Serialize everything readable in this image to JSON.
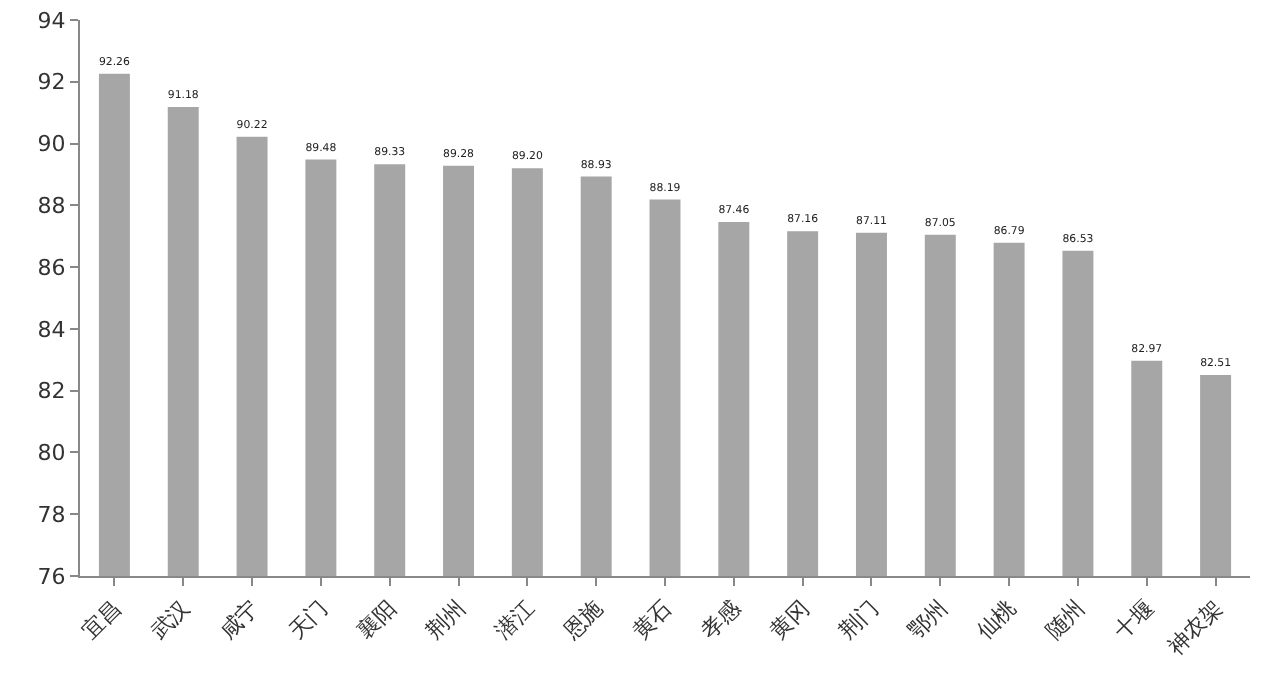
{
  "chart_data": {
    "type": "bar",
    "categories": [
      "宜昌",
      "武汉",
      "咸宁",
      "天门",
      "襄阳",
      "荆州",
      "潜江",
      "恩施",
      "黄石",
      "孝感",
      "黄冈",
      "荆门",
      "鄂州",
      "仙桃",
      "随州",
      "十堰",
      "神农架"
    ],
    "values": [
      92.26,
      91.18,
      90.22,
      89.48,
      89.33,
      89.28,
      89.2,
      88.93,
      88.19,
      87.46,
      87.16,
      87.11,
      87.05,
      86.79,
      86.53,
      82.97,
      82.51
    ],
    "value_labels": [
      "92.26",
      "91.18",
      "90.22",
      "89.48",
      "89.33",
      "89.28",
      "89.20",
      "88.93",
      "88.19",
      "87.46",
      "87.16",
      "87.11",
      "87.05",
      "86.79",
      "86.53",
      "82.97",
      "82.51"
    ],
    "color": "#a6a6a6",
    "ylim": [
      76,
      94
    ],
    "yticks": [
      76,
      78,
      80,
      82,
      84,
      86,
      88,
      90,
      92,
      94
    ],
    "grid": false,
    "legend": false
  }
}
